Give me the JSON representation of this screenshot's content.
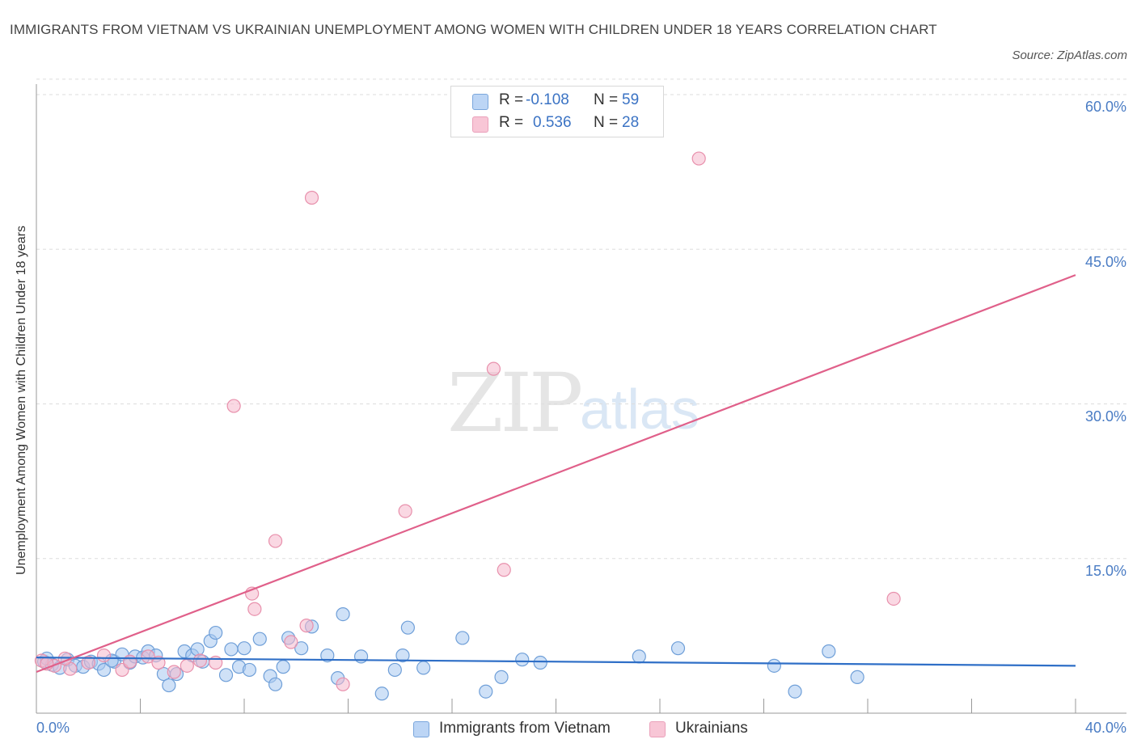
{
  "title": "IMMIGRANTS FROM VIETNAM VS UKRAINIAN UNEMPLOYMENT AMONG WOMEN WITH CHILDREN UNDER 18 YEARS CORRELATION CHART",
  "source": "Source: ZipAtlas.com",
  "watermark": {
    "zip": "ZIP",
    "atlas": "atlas"
  },
  "legend": {
    "rows": [
      {
        "r_label": "R =",
        "r_value": "-0.108",
        "n_label": "N =",
        "n_value": "59"
      },
      {
        "r_label": "R =",
        "r_value": "0.536",
        "n_label": "N =",
        "n_value": "28"
      }
    ]
  },
  "bottom_legend": [
    "Immigrants from Vietnam",
    "Ukrainians"
  ],
  "colors": {
    "blue_fill": "#a8c8f0",
    "blue_stroke": "#6f9fd8",
    "blue_line": "#2f6fc7",
    "pink_fill": "#f5b8cc",
    "pink_stroke": "#e890ac",
    "pink_line": "#e0608a",
    "grid": "#dddddd",
    "tick_text": "#4a7cc4"
  },
  "chart_data": {
    "type": "scatter",
    "title": "IMMIGRANTS FROM VIETNAM VS UKRAINIAN UNEMPLOYMENT AMONG WOMEN WITH CHILDREN UNDER 18 YEARS CORRELATION CHART",
    "xlabel": "",
    "ylabel": "Unemployment Among Women with Children Under 18 years",
    "xlim": [
      0,
      40
    ],
    "ylim": [
      0,
      60
    ],
    "x_tick_labels": [
      "0.0%",
      "40.0%"
    ],
    "y_ticks": [
      15,
      30,
      45,
      60
    ],
    "y_tick_labels": [
      "15.0%",
      "30.0%",
      "45.0%",
      "60.0%"
    ],
    "series": [
      {
        "name": "Immigrants from Vietnam",
        "points": [
          [
            0.3,
            5.0
          ],
          [
            0.6,
            4.7
          ],
          [
            0.9,
            4.4
          ],
          [
            1.2,
            5.2
          ],
          [
            1.5,
            4.6
          ],
          [
            1.8,
            4.5
          ],
          [
            2.1,
            5.0
          ],
          [
            2.4,
            4.8
          ],
          [
            2.6,
            4.2
          ],
          [
            3.0,
            5.0
          ],
          [
            3.3,
            5.7
          ],
          [
            3.6,
            4.9
          ],
          [
            3.8,
            5.5
          ],
          [
            4.1,
            5.4
          ],
          [
            4.3,
            6.0
          ],
          [
            4.6,
            5.6
          ],
          [
            4.9,
            3.8
          ],
          [
            5.1,
            2.7
          ],
          [
            5.4,
            3.8
          ],
          [
            5.7,
            6.0
          ],
          [
            6.0,
            5.6
          ],
          [
            6.2,
            6.2
          ],
          [
            6.4,
            5.0
          ],
          [
            6.7,
            7.0
          ],
          [
            6.9,
            7.8
          ],
          [
            7.3,
            3.7
          ],
          [
            7.5,
            6.2
          ],
          [
            7.8,
            4.5
          ],
          [
            8.0,
            6.3
          ],
          [
            8.2,
            4.2
          ],
          [
            8.6,
            7.2
          ],
          [
            9.0,
            3.6
          ],
          [
            9.2,
            2.8
          ],
          [
            9.5,
            4.5
          ],
          [
            9.7,
            7.3
          ],
          [
            10.2,
            6.3
          ],
          [
            10.6,
            8.4
          ],
          [
            11.2,
            5.6
          ],
          [
            11.6,
            3.4
          ],
          [
            11.8,
            9.6
          ],
          [
            12.5,
            5.5
          ],
          [
            13.3,
            1.9
          ],
          [
            13.8,
            4.2
          ],
          [
            14.1,
            5.6
          ],
          [
            14.3,
            8.3
          ],
          [
            14.9,
            4.4
          ],
          [
            16.4,
            7.3
          ],
          [
            17.3,
            2.1
          ],
          [
            17.9,
            3.5
          ],
          [
            18.7,
            5.2
          ],
          [
            19.4,
            4.9
          ],
          [
            23.2,
            5.5
          ],
          [
            24.7,
            6.3
          ],
          [
            28.4,
            4.6
          ],
          [
            29.2,
            2.1
          ],
          [
            30.5,
            6.0
          ],
          [
            31.6,
            3.5
          ],
          [
            0.4,
            5.3
          ],
          [
            2.9,
            5.1
          ]
        ],
        "trend": {
          "x": [
            0,
            40
          ],
          "y": [
            5.4,
            4.6
          ]
        }
      },
      {
        "name": "Ukrainians",
        "points": [
          [
            0.2,
            5.1
          ],
          [
            0.7,
            4.6
          ],
          [
            1.3,
            4.3
          ],
          [
            2.0,
            4.9
          ],
          [
            2.6,
            5.6
          ],
          [
            3.3,
            4.2
          ],
          [
            3.6,
            5.0
          ],
          [
            4.3,
            5.5
          ],
          [
            4.7,
            4.9
          ],
          [
            5.3,
            4.0
          ],
          [
            5.8,
            4.6
          ],
          [
            6.3,
            5.1
          ],
          [
            6.9,
            4.9
          ],
          [
            7.6,
            29.8
          ],
          [
            8.3,
            11.6
          ],
          [
            8.4,
            10.1
          ],
          [
            9.2,
            16.7
          ],
          [
            9.8,
            6.9
          ],
          [
            10.4,
            8.5
          ],
          [
            10.6,
            50.0
          ],
          [
            11.8,
            2.8
          ],
          [
            14.2,
            19.6
          ],
          [
            17.6,
            33.4
          ],
          [
            18.0,
            13.9
          ],
          [
            25.5,
            53.8
          ],
          [
            33.0,
            11.1
          ],
          [
            0.4,
            4.8
          ],
          [
            1.1,
            5.3
          ]
        ],
        "trend": {
          "x": [
            0,
            40
          ],
          "y": [
            4.0,
            42.5
          ]
        }
      }
    ]
  }
}
